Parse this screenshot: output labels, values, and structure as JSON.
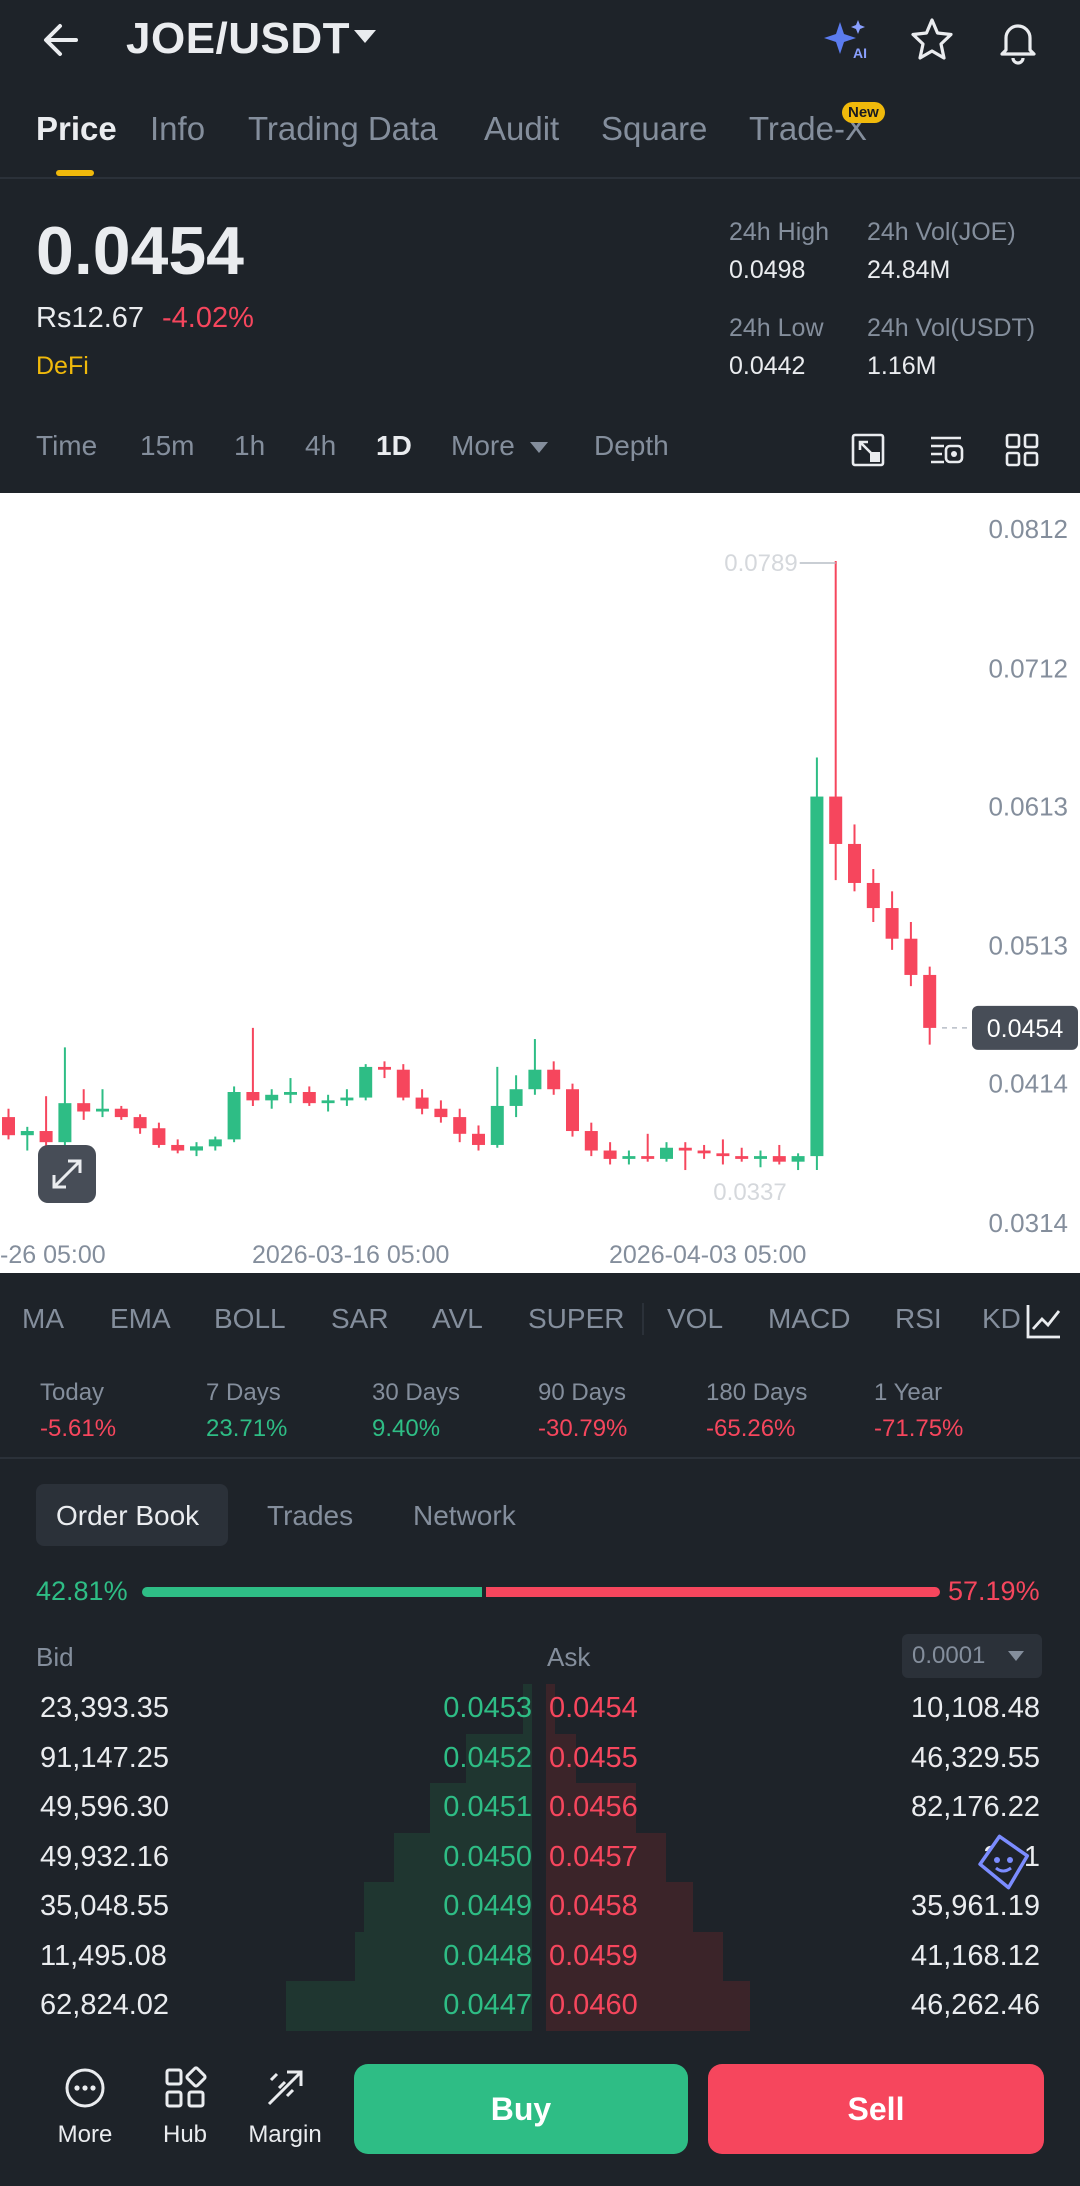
{
  "header": {
    "pair": "JOE/USDT",
    "icons": [
      "back-arrow-icon",
      "ai-sparkle-icon",
      "star-icon",
      "bell-icon"
    ]
  },
  "tabs": [
    {
      "label": "Price",
      "active": true
    },
    {
      "label": "Info"
    },
    {
      "label": "Trading Data"
    },
    {
      "label": "Audit"
    },
    {
      "label": "Square"
    },
    {
      "label": "Trade-X",
      "badge": "New"
    }
  ],
  "ticker": {
    "price": "0.0454",
    "fiat": "Rs12.67",
    "change": "-4.02%",
    "category": "DeFi",
    "high_label": "24h High",
    "high_value": "0.0498",
    "low_label": "24h Low",
    "low_value": "0.0442",
    "vol_base_label": "24h Vol(JOE)",
    "vol_base_value": "24.84M",
    "vol_quote_label": "24h Vol(USDT)",
    "vol_quote_value": "1.16M"
  },
  "timeframes": {
    "items": [
      "Time",
      "15m",
      "1h",
      "4h",
      "1D",
      "More",
      "Depth"
    ],
    "active": "1D"
  },
  "chart_data": {
    "type": "candlestick",
    "y_ticks": [
      "0.0812",
      "0.0712",
      "0.0613",
      "0.0513",
      "0.0414",
      "0.0314"
    ],
    "ylim": [
      0.0314,
      0.0812
    ],
    "x_ticks": [
      "-26 05:00",
      "2026-03-16 05:00",
      "2026-04-03 05:00"
    ],
    "max_label": "0.0789",
    "min_label": "0.0337",
    "current_price": "0.0454",
    "candles": [
      {
        "o": 0.039,
        "h": 0.0396,
        "l": 0.0374,
        "c": 0.0377
      },
      {
        "o": 0.0377,
        "h": 0.0383,
        "l": 0.0366,
        "c": 0.038
      },
      {
        "o": 0.038,
        "h": 0.0405,
        "l": 0.0362,
        "c": 0.0372
      },
      {
        "o": 0.0372,
        "h": 0.044,
        "l": 0.0368,
        "c": 0.04
      },
      {
        "o": 0.04,
        "h": 0.041,
        "l": 0.0388,
        "c": 0.0394
      },
      {
        "o": 0.0394,
        "h": 0.041,
        "l": 0.039,
        "c": 0.0396
      },
      {
        "o": 0.0396,
        "h": 0.0398,
        "l": 0.0388,
        "c": 0.039
      },
      {
        "o": 0.039,
        "h": 0.0392,
        "l": 0.0378,
        "c": 0.0382
      },
      {
        "o": 0.0382,
        "h": 0.0386,
        "l": 0.0368,
        "c": 0.037
      },
      {
        "o": 0.037,
        "h": 0.0374,
        "l": 0.0364,
        "c": 0.0366
      },
      {
        "o": 0.0366,
        "h": 0.0372,
        "l": 0.0362,
        "c": 0.0369
      },
      {
        "o": 0.0369,
        "h": 0.0376,
        "l": 0.0366,
        "c": 0.0374
      },
      {
        "o": 0.0374,
        "h": 0.0412,
        "l": 0.0372,
        "c": 0.0408
      },
      {
        "o": 0.0408,
        "h": 0.0454,
        "l": 0.0398,
        "c": 0.0402
      },
      {
        "o": 0.0402,
        "h": 0.041,
        "l": 0.0396,
        "c": 0.0406
      },
      {
        "o": 0.0406,
        "h": 0.0418,
        "l": 0.04,
        "c": 0.0408
      },
      {
        "o": 0.0408,
        "h": 0.0412,
        "l": 0.0398,
        "c": 0.04
      },
      {
        "o": 0.04,
        "h": 0.0406,
        "l": 0.0394,
        "c": 0.0402
      },
      {
        "o": 0.0402,
        "h": 0.041,
        "l": 0.0398,
        "c": 0.0404
      },
      {
        "o": 0.0404,
        "h": 0.0428,
        "l": 0.0402,
        "c": 0.0426
      },
      {
        "o": 0.0426,
        "h": 0.043,
        "l": 0.0418,
        "c": 0.0424
      },
      {
        "o": 0.0424,
        "h": 0.0428,
        "l": 0.0402,
        "c": 0.0404
      },
      {
        "o": 0.0404,
        "h": 0.041,
        "l": 0.0392,
        "c": 0.0396
      },
      {
        "o": 0.0396,
        "h": 0.0402,
        "l": 0.0386,
        "c": 0.039
      },
      {
        "o": 0.039,
        "h": 0.0396,
        "l": 0.0372,
        "c": 0.0378
      },
      {
        "o": 0.0378,
        "h": 0.0384,
        "l": 0.0366,
        "c": 0.037
      },
      {
        "o": 0.037,
        "h": 0.0426,
        "l": 0.0368,
        "c": 0.0398
      },
      {
        "o": 0.0398,
        "h": 0.042,
        "l": 0.039,
        "c": 0.041
      },
      {
        "o": 0.041,
        "h": 0.0446,
        "l": 0.0406,
        "c": 0.0424
      },
      {
        "o": 0.0424,
        "h": 0.043,
        "l": 0.0406,
        "c": 0.041
      },
      {
        "o": 0.041,
        "h": 0.0414,
        "l": 0.0376,
        "c": 0.038
      },
      {
        "o": 0.038,
        "h": 0.0386,
        "l": 0.0362,
        "c": 0.0366
      },
      {
        "o": 0.0366,
        "h": 0.0372,
        "l": 0.0356,
        "c": 0.036
      },
      {
        "o": 0.036,
        "h": 0.0366,
        "l": 0.0356,
        "c": 0.0362
      },
      {
        "o": 0.0362,
        "h": 0.0378,
        "l": 0.0358,
        "c": 0.036
      },
      {
        "o": 0.036,
        "h": 0.0372,
        "l": 0.0358,
        "c": 0.0368
      },
      {
        "o": 0.0368,
        "h": 0.0372,
        "l": 0.0352,
        "c": 0.0366
      },
      {
        "o": 0.0366,
        "h": 0.037,
        "l": 0.036,
        "c": 0.0364
      },
      {
        "o": 0.0364,
        "h": 0.0374,
        "l": 0.0356,
        "c": 0.0362
      },
      {
        "o": 0.0362,
        "h": 0.0368,
        "l": 0.0358,
        "c": 0.036
      },
      {
        "o": 0.036,
        "h": 0.0366,
        "l": 0.0354,
        "c": 0.0362
      },
      {
        "o": 0.0362,
        "h": 0.037,
        "l": 0.0356,
        "c": 0.0358
      },
      {
        "o": 0.0358,
        "h": 0.0364,
        "l": 0.0352,
        "c": 0.0362
      },
      {
        "o": 0.0362,
        "h": 0.0648,
        "l": 0.0352,
        "c": 0.062
      },
      {
        "o": 0.062,
        "h": 0.0789,
        "l": 0.056,
        "c": 0.0586
      },
      {
        "o": 0.0586,
        "h": 0.06,
        "l": 0.0552,
        "c": 0.0558
      },
      {
        "o": 0.0558,
        "h": 0.0568,
        "l": 0.053,
        "c": 0.054
      },
      {
        "o": 0.054,
        "h": 0.0552,
        "l": 0.051,
        "c": 0.0518
      },
      {
        "o": 0.0518,
        "h": 0.053,
        "l": 0.0484,
        "c": 0.0492
      },
      {
        "o": 0.0492,
        "h": 0.0498,
        "l": 0.0442,
        "c": 0.0454
      }
    ],
    "colors": {
      "up": "#2ebd85",
      "down": "#f6465d"
    }
  },
  "indicators": [
    "MA",
    "EMA",
    "BOLL",
    "SAR",
    "AVL",
    "SUPER",
    "VOL",
    "MACD",
    "RSI",
    "KD"
  ],
  "performance": [
    {
      "label": "Today",
      "value": "-5.61%",
      "dir": "down"
    },
    {
      "label": "7 Days",
      "value": "23.71%",
      "dir": "up"
    },
    {
      "label": "30 Days",
      "value": "9.40%",
      "dir": "up"
    },
    {
      "label": "90 Days",
      "value": "-30.79%",
      "dir": "down"
    },
    {
      "label": "180 Days",
      "value": "-65.26%",
      "dir": "down"
    },
    {
      "label": "1 Year",
      "value": "-71.75%",
      "dir": "down"
    }
  ],
  "orderbook": {
    "tabs": [
      "Order Book",
      "Trades",
      "Network"
    ],
    "bid_ratio": "42.81%",
    "ask_ratio": "57.19%",
    "bid_fraction": 0.4281,
    "bid_header": "Bid",
    "ask_header": "Ask",
    "precision": "0.0001",
    "rows": [
      {
        "bid_qty": "23,393.35",
        "bid_price": "0.0453",
        "ask_price": "0.0454",
        "ask_qty": "10,108.48",
        "bid_depth": 0.03,
        "ask_depth": 0.03
      },
      {
        "bid_qty": "91,147.25",
        "bid_price": "0.0452",
        "ask_price": "0.0455",
        "ask_qty": "46,329.55",
        "bid_depth": 0.22,
        "ask_depth": 0.1
      },
      {
        "bid_qty": "49,596.30",
        "bid_price": "0.0451",
        "ask_price": "0.0456",
        "ask_qty": "82,176.22",
        "bid_depth": 0.34,
        "ask_depth": 0.3
      },
      {
        "bid_qty": "49,932.16",
        "bid_price": "0.0450",
        "ask_price": "0.0457",
        "ask_qty": "37,1",
        "bid_depth": 0.46,
        "ask_depth": 0.4
      },
      {
        "bid_qty": "35,048.55",
        "bid_price": "0.0449",
        "ask_price": "0.0458",
        "ask_qty": "35,961.19",
        "bid_depth": 0.56,
        "ask_depth": 0.49
      },
      {
        "bid_qty": "11,495.08",
        "bid_price": "0.0448",
        "ask_price": "0.0459",
        "ask_qty": "41,168.12",
        "bid_depth": 0.59,
        "ask_depth": 0.59
      },
      {
        "bid_qty": "62,824.02",
        "bid_price": "0.0447",
        "ask_price": "0.0460",
        "ask_qty": "46,262.46",
        "bid_depth": 0.82,
        "ask_depth": 0.68
      }
    ]
  },
  "bottom_nav": [
    {
      "label": "More",
      "icon": "more-dots-icon"
    },
    {
      "label": "Hub",
      "icon": "hub-grid-icon"
    },
    {
      "label": "Margin",
      "icon": "margin-icon"
    }
  ],
  "actions": {
    "buy": "Buy",
    "sell": "Sell"
  }
}
